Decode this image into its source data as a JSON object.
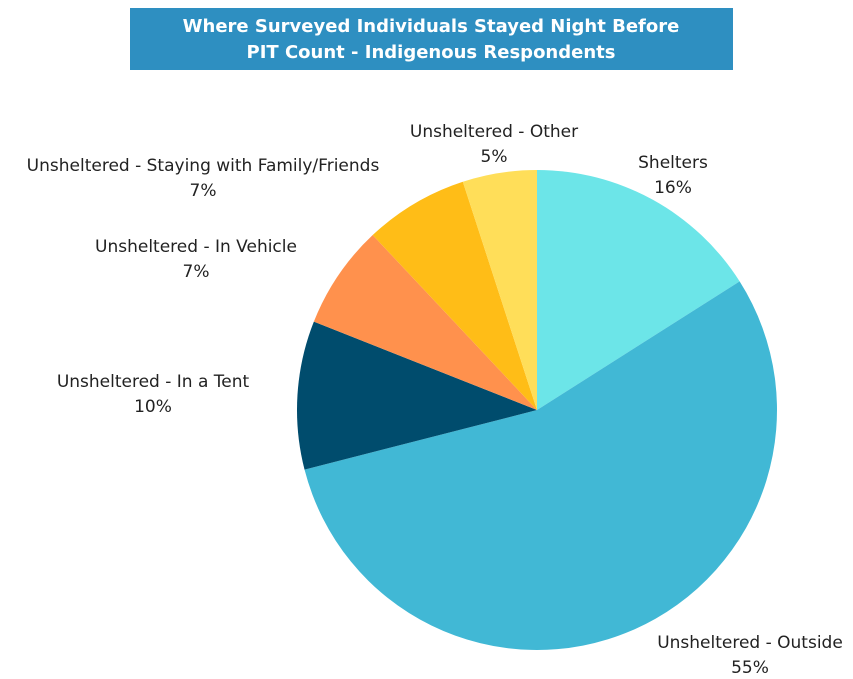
{
  "chart_data": {
    "type": "pie",
    "title": [
      "Where Surveyed Individuals Stayed Night Before",
      "PIT Count - Indigenous Respondents"
    ],
    "categories": [
      "Shelters",
      "Unsheltered - Outside",
      "Unsheltered - In a Tent",
      "Unsheltered - In Vehicle",
      "Unsheltered - Staying with Family/Friends",
      "Unsheltered - Other"
    ],
    "values": [
      16,
      55,
      10,
      7,
      7,
      5
    ],
    "value_labels": [
      "16%",
      "55%",
      "10%",
      "7%",
      "7%",
      "5%"
    ],
    "colors": [
      "#6ce5e8",
      "#41b8d5",
      "#004c6d",
      "#ff914d",
      "#ffbd17",
      "#ffde59"
    ]
  }
}
